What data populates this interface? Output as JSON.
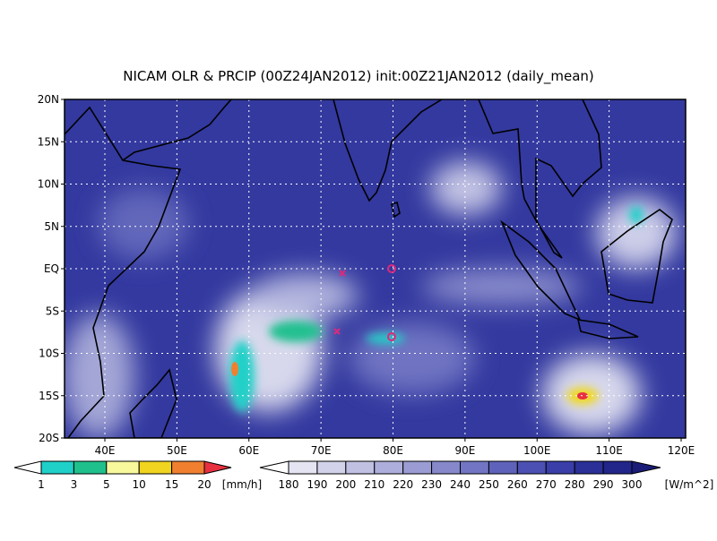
{
  "title": "NICAM OLR & PRCIP (00Z24JAN2012) init:00Z21JAN2012 (daily_mean)",
  "lat_labels": [
    "20N",
    "15N",
    "10N",
    "5N",
    "EQ",
    "5S",
    "10S",
    "15S",
    "20S"
  ],
  "lon_labels": [
    "40E",
    "50E",
    "60E",
    "70E",
    "80E",
    "90E",
    "100E",
    "110E",
    "120E"
  ],
  "precip_legend": {
    "ticks": [
      1,
      3,
      5,
      10,
      15,
      20
    ],
    "unit": "[mm/h]"
  },
  "olr_legend": {
    "ticks": [
      180,
      190,
      200,
      210,
      220,
      230,
      240,
      250,
      260,
      270,
      280,
      290,
      300
    ],
    "unit": "[W/m^2]"
  }
}
